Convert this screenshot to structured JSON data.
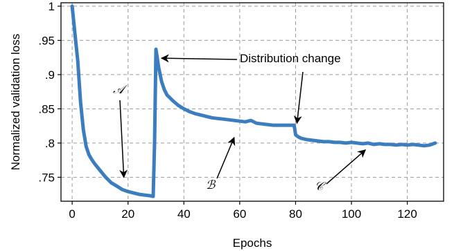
{
  "chart_data": {
    "type": "line",
    "title": "",
    "xlabel": "Epochs",
    "ylabel": "Normalized validation loss",
    "xlim": [
      -4,
      133
    ],
    "ylim": [
      0.715,
      1.005
    ],
    "xticks": [
      0,
      20,
      40,
      60,
      80,
      100,
      120
    ],
    "xtick_labels": [
      "0",
      "20",
      "40",
      "60",
      "80",
      "100",
      "120"
    ],
    "yticks": [
      0.75,
      0.8,
      0.85,
      0.9,
      0.95,
      1.0
    ],
    "ytick_labels": [
      ".75",
      ".8",
      ".85",
      ".9",
      ".95",
      "1"
    ],
    "grid": true,
    "grid_style": "dashed",
    "line_color": "#3b7dbf",
    "series": [
      {
        "name": "",
        "x": [
          0,
          1,
          2,
          3,
          4,
          5,
          6,
          7,
          8,
          10,
          12,
          14,
          16,
          18,
          20,
          22,
          24,
          26,
          28,
          29,
          29.5,
          30,
          31,
          32,
          33,
          34,
          36,
          38,
          40,
          42,
          44,
          46,
          48,
          50,
          52,
          54,
          56,
          58,
          60,
          62,
          64,
          66,
          68,
          70,
          72,
          74,
          76,
          78,
          79.5,
          80,
          81,
          82,
          84,
          86,
          88,
          90,
          92,
          94,
          96,
          98,
          100,
          102,
          104,
          106,
          108,
          110,
          112,
          114,
          116,
          118,
          120,
          122,
          124,
          126,
          128,
          130
        ],
        "y": [
          1.0,
          0.96,
          0.92,
          0.86,
          0.82,
          0.795,
          0.783,
          0.776,
          0.77,
          0.76,
          0.75,
          0.742,
          0.737,
          0.732,
          0.729,
          0.727,
          0.725,
          0.724,
          0.723,
          0.722,
          0.8,
          0.937,
          0.91,
          0.89,
          0.878,
          0.87,
          0.862,
          0.855,
          0.85,
          0.846,
          0.843,
          0.841,
          0.839,
          0.837,
          0.836,
          0.835,
          0.834,
          0.833,
          0.832,
          0.831,
          0.833,
          0.829,
          0.828,
          0.827,
          0.826,
          0.826,
          0.826,
          0.826,
          0.826,
          0.812,
          0.809,
          0.807,
          0.805,
          0.804,
          0.803,
          0.802,
          0.802,
          0.801,
          0.801,
          0.8,
          0.801,
          0.8,
          0.799,
          0.8,
          0.798,
          0.799,
          0.798,
          0.798,
          0.797,
          0.798,
          0.797,
          0.798,
          0.797,
          0.796,
          0.797,
          0.8
        ]
      }
    ],
    "annotations": [
      {
        "id": "distribution-change",
        "text": "Distribution change",
        "style": "text",
        "target": [
          30,
          0.925
        ],
        "target2": [
          80,
          0.83
        ]
      },
      {
        "id": "a",
        "text": "𝒜",
        "style": "letter",
        "target": [
          18.5,
          0.75
        ]
      },
      {
        "id": "b",
        "text": "ℬ",
        "style": "letter",
        "target": [
          58,
          0.808
        ]
      },
      {
        "id": "c",
        "text": "𝒞",
        "style": "letter",
        "target": [
          105,
          0.79
        ]
      }
    ]
  }
}
